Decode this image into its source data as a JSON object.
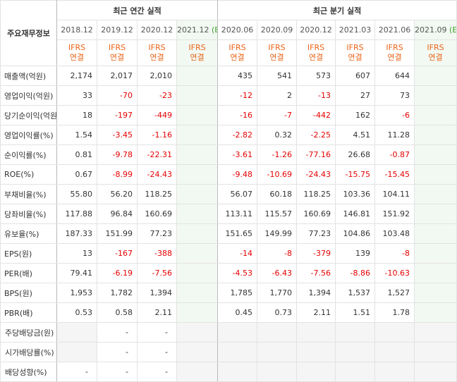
{
  "header": {
    "row_label": "주요재무정보",
    "annual_title": "최근 연간 실적",
    "quarter_title": "최근 분기 실적",
    "annual_periods": [
      {
        "label": "2018.12",
        "est": ""
      },
      {
        "label": "2019.12",
        "est": ""
      },
      {
        "label": "2020.12",
        "est": ""
      },
      {
        "label": "2021.12",
        "est": "(E)"
      }
    ],
    "quarter_periods": [
      {
        "label": "2020.06",
        "est": ""
      },
      {
        "label": "2020.09",
        "est": ""
      },
      {
        "label": "2020.12",
        "est": ""
      },
      {
        "label": "2021.03",
        "est": ""
      },
      {
        "label": "2021.06",
        "est": ""
      },
      {
        "label": "2021.09",
        "est": "(E)"
      }
    ],
    "ifrs_line1": "IFRS",
    "ifrs_line2": "연결"
  },
  "rows": [
    {
      "label": "매출액(억원)",
      "values": [
        "2,174",
        "2,017",
        "2,010",
        "",
        "435",
        "541",
        "573",
        "607",
        "644",
        ""
      ]
    },
    {
      "label": "영업이익(억원)",
      "values": [
        "33",
        "-70",
        "-23",
        "",
        "-12",
        "2",
        "-13",
        "27",
        "73",
        ""
      ]
    },
    {
      "label": "당기순이익(억원)",
      "values": [
        "18",
        "-197",
        "-449",
        "",
        "-16",
        "-7",
        "-442",
        "162",
        "-6",
        ""
      ]
    },
    {
      "label": "영업이익률(%)",
      "values": [
        "1.54",
        "-3.45",
        "-1.16",
        "",
        "-2.82",
        "0.32",
        "-2.25",
        "4.51",
        "11.28",
        ""
      ]
    },
    {
      "label": "순이익률(%)",
      "values": [
        "0.81",
        "-9.78",
        "-22.31",
        "",
        "-3.61",
        "-1.26",
        "-77.16",
        "26.68",
        "-0.87",
        ""
      ]
    },
    {
      "label": "ROE(%)",
      "values": [
        "0.67",
        "-8.99",
        "-24.43",
        "",
        "-9.48",
        "-10.69",
        "-24.43",
        "-15.75",
        "-15.45",
        ""
      ]
    },
    {
      "label": "부채비율(%)",
      "values": [
        "55.80",
        "56.20",
        "118.25",
        "",
        "56.07",
        "60.18",
        "118.25",
        "103.36",
        "104.11",
        ""
      ]
    },
    {
      "label": "당좌비율(%)",
      "values": [
        "117.88",
        "96.84",
        "160.69",
        "",
        "113.11",
        "115.57",
        "160.69",
        "146.81",
        "151.92",
        ""
      ]
    },
    {
      "label": "유보율(%)",
      "values": [
        "187.33",
        "151.99",
        "77.23",
        "",
        "151.65",
        "149.99",
        "77.23",
        "104.86",
        "103.48",
        ""
      ]
    },
    {
      "label": "EPS(원)",
      "values": [
        "13",
        "-167",
        "-388",
        "",
        "-14",
        "-8",
        "-379",
        "139",
        "-8",
        ""
      ]
    },
    {
      "label": "PER(배)",
      "values": [
        "79.41",
        "-6.19",
        "-7.56",
        "",
        "-4.53",
        "-6.43",
        "-7.56",
        "-8.86",
        "-10.63",
        ""
      ]
    },
    {
      "label": "BPS(원)",
      "values": [
        "1,953",
        "1,782",
        "1,394",
        "",
        "1,785",
        "1,770",
        "1,394",
        "1,537",
        "1,527",
        ""
      ]
    },
    {
      "label": "PBR(배)",
      "values": [
        "0.53",
        "0.58",
        "2.11",
        "",
        "0.45",
        "0.73",
        "2.11",
        "1.51",
        "1.78",
        ""
      ]
    },
    {
      "label": "주당배당금(원)",
      "values": [
        "",
        "-",
        "-",
        "",
        "",
        "",
        "",
        "",
        "",
        ""
      ]
    },
    {
      "label": "시가배당률(%)",
      "values": [
        "",
        "-",
        "-",
        "",
        "",
        "",
        "",
        "",
        "",
        ""
      ]
    },
    {
      "label": "배당성향(%)",
      "values": [
        "-",
        "-",
        "-",
        "",
        "",
        "",
        "",
        "",
        "",
        ""
      ]
    }
  ],
  "colors": {
    "negative": "#e50000",
    "ifrs": "#e86418",
    "estimate_bg": "#f2f9f2",
    "estimate_mark": "#3e9b2f"
  }
}
